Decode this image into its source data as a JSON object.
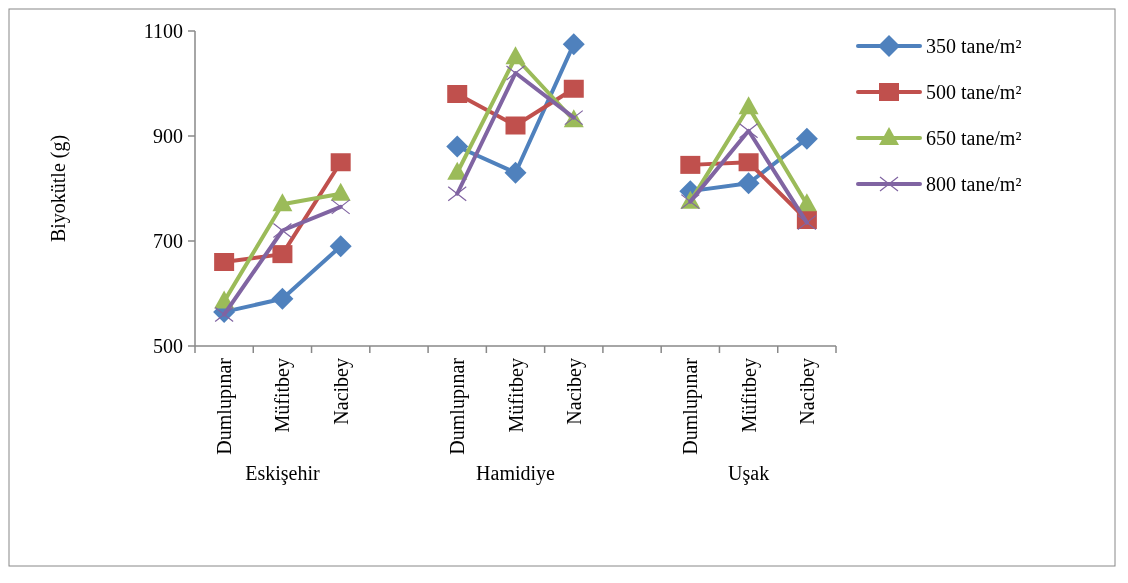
{
  "chart_data": {
    "type": "line",
    "ylabel": "Biyokütle (g)",
    "categories": [
      "Dumlupınar",
      "Müfitbey",
      "Nacibey",
      null,
      "Dumlupınar",
      "Müfitbey",
      "Nacibey",
      null,
      "Dumlupınar",
      "Müfitbey",
      "Nacibey"
    ],
    "series": [
      {
        "name": "350 tane/m²",
        "color": "#4f81bd",
        "marker": "diamond",
        "values": [
          565,
          590,
          690,
          null,
          880,
          830,
          1075,
          null,
          795,
          810,
          895
        ]
      },
      {
        "name": "500 tane/m²",
        "color": "#c0504d",
        "marker": "square",
        "values": [
          660,
          675,
          850,
          null,
          980,
          920,
          990,
          null,
          845,
          850,
          740
        ]
      },
      {
        "name": "650 tane/m²",
        "color": "#9bbb59",
        "marker": "triangle",
        "values": [
          585,
          770,
          790,
          null,
          830,
          1050,
          930,
          null,
          775,
          955,
          770
        ]
      },
      {
        "name": "800 tane/m²",
        "color": "#8064a2",
        "marker": "cross",
        "values": [
          560,
          720,
          765,
          null,
          790,
          1020,
          935,
          null,
          775,
          910,
          735
        ]
      }
    ],
    "ylim": [
      500,
      1100
    ],
    "yticks": [
      500,
      700,
      900,
      1100
    ],
    "grid": false,
    "legend": "right",
    "annotations": [
      "Eskişehir",
      "Hamidiye",
      "Uşak"
    ]
  }
}
